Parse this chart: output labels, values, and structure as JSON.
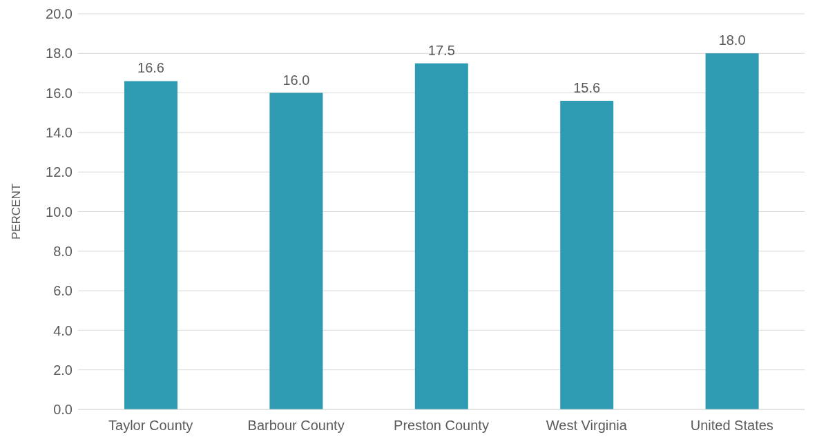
{
  "chart_data": {
    "type": "bar",
    "ylabel": "PERCENT",
    "categories": [
      "Taylor County",
      "Barbour County",
      "Preston County",
      "West Virginia",
      "United States"
    ],
    "values": [
      16.6,
      16.0,
      17.5,
      15.6,
      18.0
    ],
    "value_labels": [
      "16.6",
      "16.0",
      "17.5",
      "15.6",
      "18.0"
    ],
    "color": "#2e9bb3",
    "ylim": [
      0,
      20
    ],
    "yticks": [
      {
        "value": 0,
        "label": "0.0"
      },
      {
        "value": 2,
        "label": "2.0"
      },
      {
        "value": 4,
        "label": "4.0"
      },
      {
        "value": 6,
        "label": "6.0"
      },
      {
        "value": 8,
        "label": "8.0"
      },
      {
        "value": 10,
        "label": "10.0"
      },
      {
        "value": 12,
        "label": "12.0"
      },
      {
        "value": 14,
        "label": "14.0"
      },
      {
        "value": 16,
        "label": "16.0"
      },
      {
        "value": 18,
        "label": "18.0"
      },
      {
        "value": 20,
        "label": "20.0"
      }
    ],
    "grid": "y",
    "legend": false
  }
}
